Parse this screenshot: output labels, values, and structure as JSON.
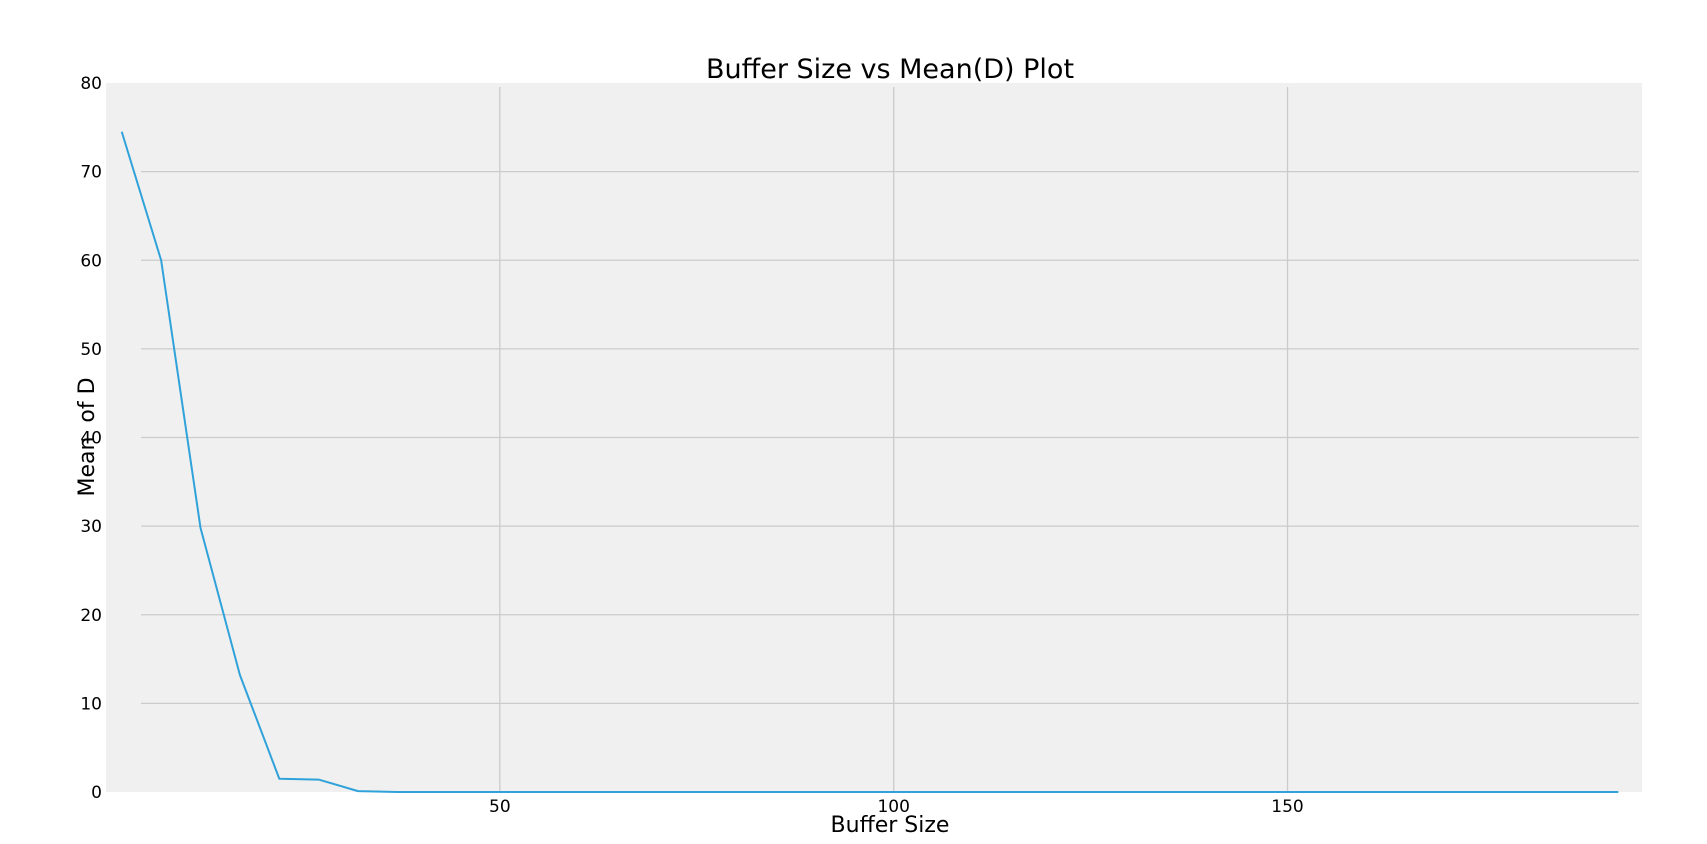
{
  "chart_data": {
    "type": "line",
    "title": "Buffer Size vs Mean(D) Plot",
    "xlabel": "Buffer Size",
    "ylabel": "Mean  of D",
    "xlim": [
      0,
      195
    ],
    "ylim": [
      0,
      80
    ],
    "x_ticks": [
      50,
      100,
      150
    ],
    "y_ticks": [
      0,
      10,
      20,
      30,
      40,
      50,
      60,
      70,
      80
    ],
    "grid": true,
    "legend": "none",
    "series": [
      {
        "color": "#30a2da",
        "x": [
          2,
          7,
          12,
          17,
          22,
          27,
          32,
          37,
          42,
          47,
          52,
          57,
          62,
          67,
          72,
          77,
          82,
          87,
          92,
          97,
          102,
          107,
          112,
          117,
          122,
          127,
          132,
          137,
          142,
          147,
          152,
          157,
          162,
          167,
          172,
          177,
          182,
          187,
          192
        ],
        "y": [
          74.5,
          60.0,
          29.8,
          13.2,
          1.5,
          1.4,
          0.1,
          0,
          0,
          0,
          0,
          0,
          0,
          0,
          0,
          0,
          0,
          0,
          0,
          0,
          0,
          0,
          0,
          0,
          0,
          0,
          0,
          0,
          0,
          0,
          0,
          0,
          0,
          0,
          0,
          0,
          0,
          0,
          0
        ]
      }
    ]
  },
  "style": {
    "plot_bg": "#f0f0f0",
    "grid_color": "#cbcbcb",
    "line_color": "#30a2da"
  }
}
